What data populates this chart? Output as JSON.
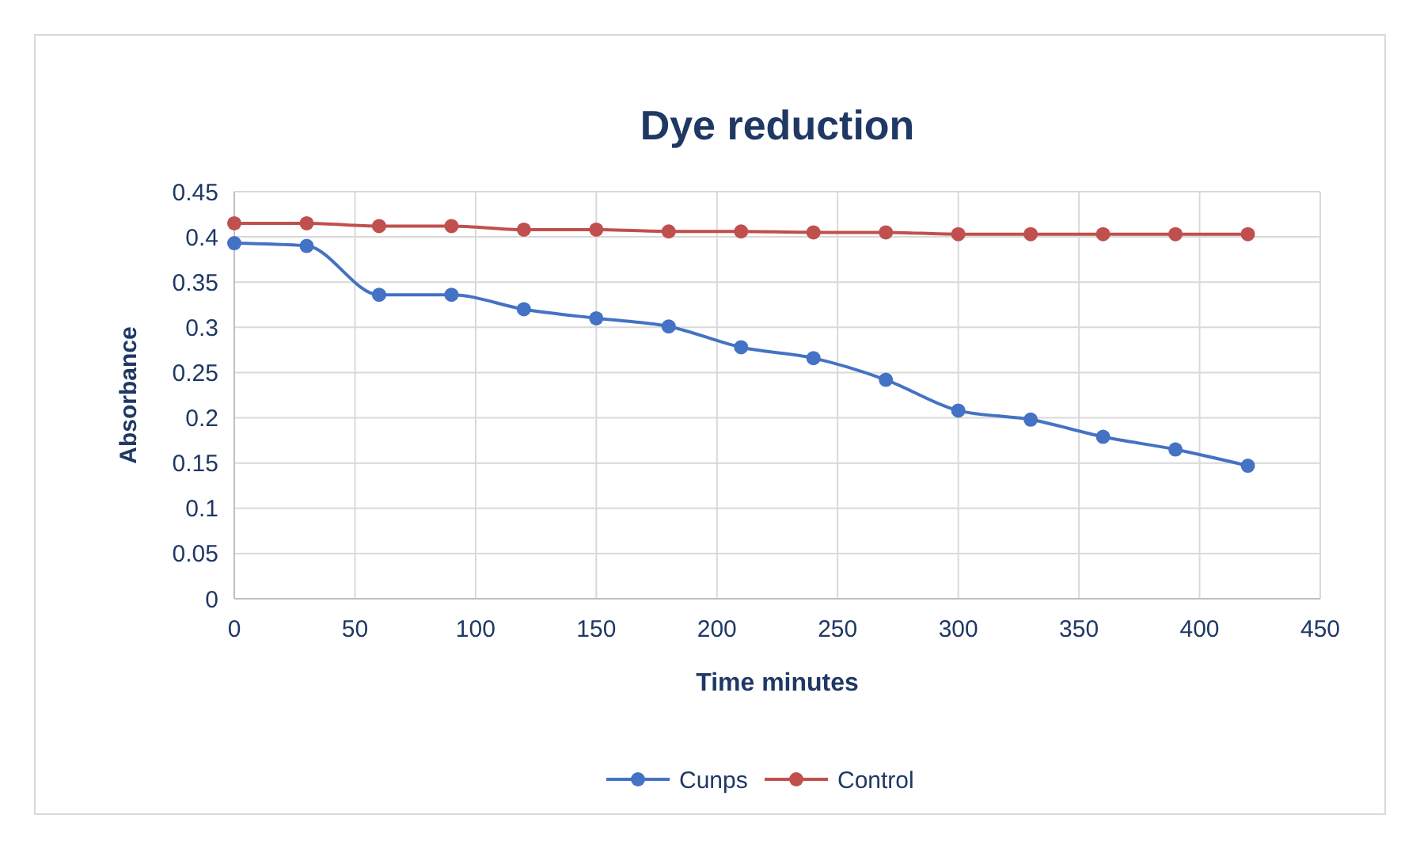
{
  "chart_data": {
    "type": "line",
    "title": "Dye reduction",
    "xlabel": "Time minutes",
    "ylabel": "Absorbance",
    "x": [
      0,
      30,
      60,
      90,
      120,
      150,
      180,
      210,
      240,
      270,
      300,
      330,
      360,
      390,
      420
    ],
    "series": [
      {
        "name": "Cunps",
        "color": "#4472c4",
        "values": [
          0.393,
          0.39,
          0.336,
          0.336,
          0.32,
          0.31,
          0.301,
          0.278,
          0.266,
          0.242,
          0.208,
          0.198,
          0.179,
          0.165,
          0.147
        ]
      },
      {
        "name": "Control",
        "color": "#c0504d",
        "values": [
          0.415,
          0.415,
          0.412,
          0.412,
          0.408,
          0.408,
          0.406,
          0.406,
          0.405,
          0.405,
          0.403,
          0.403,
          0.403,
          0.403,
          0.403
        ]
      }
    ],
    "xlim": [
      0,
      450
    ],
    "xticks": [
      0,
      50,
      100,
      150,
      200,
      250,
      300,
      350,
      400,
      450
    ],
    "ylim": [
      0,
      0.45
    ],
    "yticks": [
      0,
      0.05,
      0.1,
      0.15,
      0.2,
      0.25,
      0.3,
      0.35,
      0.4,
      0.45
    ],
    "grid": true,
    "legend": "bottom",
    "marker": "circle",
    "line_style": "solid"
  }
}
